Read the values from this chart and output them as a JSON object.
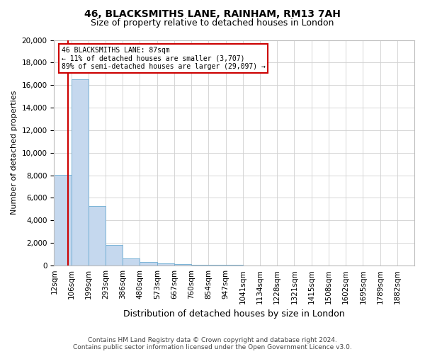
{
  "title_line1": "46, BLACKSMITHS LANE, RAINHAM, RM13 7AH",
  "title_line2": "Size of property relative to detached houses in London",
  "xlabel": "Distribution of detached houses by size in London",
  "ylabel": "Number of detached properties",
  "bar_color": "#c5d8ee",
  "bar_edge_color": "#6aabd2",
  "categories": [
    "12sqm",
    "106sqm",
    "199sqm",
    "293sqm",
    "386sqm",
    "480sqm",
    "573sqm",
    "667sqm",
    "760sqm",
    "854sqm",
    "947sqm",
    "1041sqm",
    "1134sqm",
    "1228sqm",
    "1321sqm",
    "1415sqm",
    "1508sqm",
    "1602sqm",
    "1695sqm",
    "1789sqm",
    "1882sqm"
  ],
  "values": [
    8050,
    16500,
    5300,
    1800,
    650,
    340,
    180,
    110,
    90,
    60,
    40,
    30,
    22,
    15,
    10,
    7,
    5,
    4,
    3,
    2,
    1
  ],
  "property_bin": 0.8,
  "annotation_text": "46 BLACKSMITHS LANE: 87sqm\n← 11% of detached houses are smaller (3,707)\n89% of semi-detached houses are larger (29,097) →",
  "annotation_box_color": "#ffffff",
  "annotation_box_edge_color": "#cc0000",
  "vline_color": "#cc0000",
  "ylim": [
    0,
    20000
  ],
  "yticks": [
    0,
    2000,
    4000,
    6000,
    8000,
    10000,
    12000,
    14000,
    16000,
    18000,
    20000
  ],
  "footer_line1": "Contains HM Land Registry data © Crown copyright and database right 2024.",
  "footer_line2": "Contains public sector information licensed under the Open Government Licence v3.0.",
  "grid_color": "#d0d0d0",
  "background_color": "#ffffff",
  "title_fontsize": 10,
  "subtitle_fontsize": 9,
  "xlabel_fontsize": 9,
  "ylabel_fontsize": 8,
  "tick_fontsize": 7.5,
  "footer_fontsize": 6.5
}
